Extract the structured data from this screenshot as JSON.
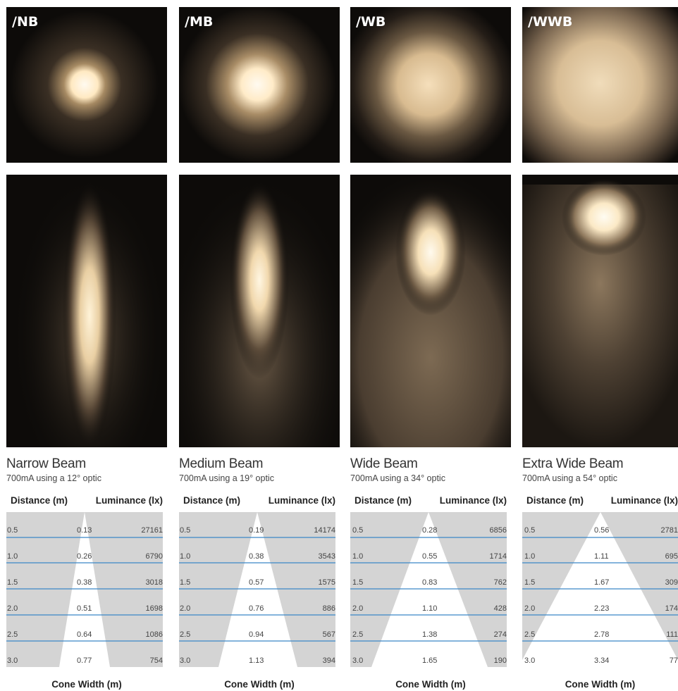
{
  "panels": [
    {
      "code": "/NB",
      "name": "Narrow Beam",
      "subtitle": "700mA using a 12° optic",
      "rows": [
        {
          "distance": "0.5",
          "cone": "0.13",
          "lux": "27161"
        },
        {
          "distance": "1.0",
          "cone": "0.26",
          "lux": "6790"
        },
        {
          "distance": "1.5",
          "cone": "0.38",
          "lux": "3018"
        },
        {
          "distance": "2.0",
          "cone": "0.51",
          "lux": "1698"
        },
        {
          "distance": "2.5",
          "cone": "0.64",
          "lux": "1086"
        },
        {
          "distance": "3.0",
          "cone": "0.77",
          "lux": "754"
        }
      ]
    },
    {
      "code": "/MB",
      "name": "Medium Beam",
      "subtitle": "700mA using a 19° optic",
      "rows": [
        {
          "distance": "0.5",
          "cone": "0.19",
          "lux": "14174"
        },
        {
          "distance": "1.0",
          "cone": "0.38",
          "lux": "3543"
        },
        {
          "distance": "1.5",
          "cone": "0.57",
          "lux": "1575"
        },
        {
          "distance": "2.0",
          "cone": "0.76",
          "lux": "886"
        },
        {
          "distance": "2.5",
          "cone": "0.94",
          "lux": "567"
        },
        {
          "distance": "3.0",
          "cone": "1.13",
          "lux": "394"
        }
      ]
    },
    {
      "code": "/WB",
      "name": "Wide Beam",
      "subtitle": "700mA using a 34° optic",
      "rows": [
        {
          "distance": "0.5",
          "cone": "0.28",
          "lux": "6856"
        },
        {
          "distance": "1.0",
          "cone": "0.55",
          "lux": "1714"
        },
        {
          "distance": "1.5",
          "cone": "0.83",
          "lux": "762"
        },
        {
          "distance": "2.0",
          "cone": "1.10",
          "lux": "428"
        },
        {
          "distance": "2.5",
          "cone": "1.38",
          "lux": "274"
        },
        {
          "distance": "3.0",
          "cone": "1.65",
          "lux": "190"
        }
      ]
    },
    {
      "code": "/WWB",
      "name": "Extra Wide Beam",
      "subtitle": "700mA using a 54° optic",
      "rows": [
        {
          "distance": "0.5",
          "cone": "0.56",
          "lux": "2781"
        },
        {
          "distance": "1.0",
          "cone": "1.11",
          "lux": "695"
        },
        {
          "distance": "1.5",
          "cone": "1.67",
          "lux": "309"
        },
        {
          "distance": "2.0",
          "cone": "2.23",
          "lux": "174"
        },
        {
          "distance": "2.5",
          "cone": "2.78",
          "lux": "111"
        },
        {
          "distance": "3.0",
          "cone": "3.34",
          "lux": "77"
        }
      ]
    }
  ],
  "labels": {
    "distance_header": "Distance (m)",
    "luminance_header": "Luminance (lx)",
    "cone_footer": "Cone Width (m)"
  },
  "colors": {
    "cone_fill": "#ffffff",
    "table_bg": "#d4d4d4",
    "row_line": "#3a86c8",
    "light": "#fff6e0",
    "dark": "#0d0b09"
  }
}
